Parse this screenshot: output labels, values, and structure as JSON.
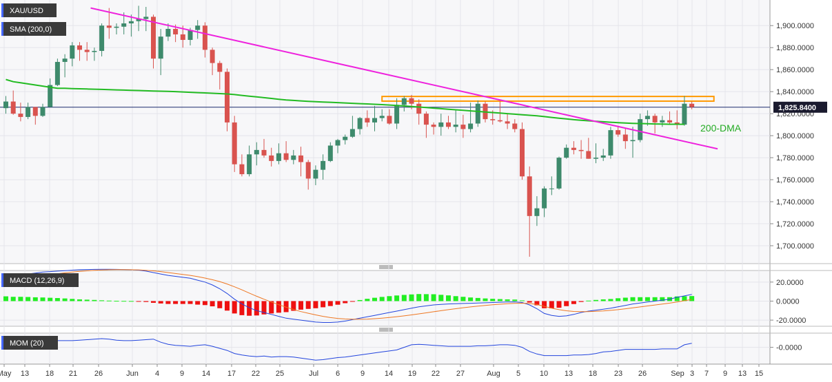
{
  "colors": {
    "up": "#3e8a6c",
    "down": "#d9534f",
    "sma": "#22bb22",
    "trendline": "#ee22dd",
    "resistance": "#ff9900",
    "macd_line": "#2244dd",
    "signal_line": "#ee7722",
    "hist_pos": "#22ee22",
    "hist_neg": "#ee1111",
    "mom_line": "#2244dd",
    "price_tag": "#1a1a2e",
    "current_line": "#1a2a6c"
  },
  "chart_data": [
    {
      "type": "candlestick",
      "title": "XAU/USD",
      "indicator_label": "SMA (200,0)",
      "annotation": "200-DMA",
      "current_price": 1825.84,
      "current_price_label": "1,825.8400",
      "ylim": [
        1685,
        1922
      ],
      "y_ticks": [
        "1,700.0000",
        "1,720.0000",
        "1,740.0000",
        "1,760.0000",
        "1,780.0000",
        "1,800.0000",
        "1,820.0000",
        "1,840.0000",
        "1,860.0000",
        "1,880.0000",
        "1,900.0000"
      ],
      "x_ticks": [
        "May",
        "13",
        "18",
        "21",
        "26",
        "Jun",
        "4",
        "9",
        "14",
        "17",
        "22",
        "25",
        "Jul",
        "6",
        "9",
        "14",
        "19",
        "22",
        "27",
        "Aug",
        "5",
        "10",
        "13",
        "18",
        "23",
        "26",
        "Sep",
        "3",
        "7",
        "9",
        "13",
        "15"
      ],
      "candles": [
        [
          1825,
          1836,
          1820,
          1831
        ],
        [
          1831,
          1841,
          1819,
          1820
        ],
        [
          1820,
          1830,
          1813,
          1817
        ],
        [
          1817,
          1830,
          1815,
          1826
        ],
        [
          1826,
          1826,
          1810,
          1818
        ],
        [
          1818,
          1829,
          1817,
          1826
        ],
        [
          1826,
          1852,
          1826,
          1846
        ],
        [
          1846,
          1870,
          1845,
          1867
        ],
        [
          1867,
          1874,
          1853,
          1870
        ],
        [
          1870,
          1885,
          1863,
          1882
        ],
        [
          1882,
          1885,
          1868,
          1878
        ],
        [
          1878,
          1885,
          1868,
          1876
        ],
        [
          1876,
          1880,
          1868,
          1877
        ],
        [
          1877,
          1902,
          1872,
          1900
        ],
        [
          1900,
          1916,
          1888,
          1898
        ],
        [
          1898,
          1902,
          1892,
          1899
        ],
        [
          1899,
          1912,
          1892,
          1902
        ],
        [
          1902,
          1910,
          1890,
          1904
        ],
        [
          1904,
          1918,
          1895,
          1906
        ],
        [
          1906,
          1917,
          1895,
          1908
        ],
        [
          1908,
          1910,
          1861,
          1870
        ],
        [
          1870,
          1897,
          1855,
          1890
        ],
        [
          1890,
          1902,
          1886,
          1897
        ],
        [
          1897,
          1901,
          1885,
          1892
        ],
        [
          1892,
          1900,
          1880,
          1887
        ],
        [
          1887,
          1898,
          1882,
          1896
        ],
        [
          1896,
          1905,
          1888,
          1900
        ],
        [
          1900,
          1903,
          1871,
          1878
        ],
        [
          1878,
          1880,
          1855,
          1866
        ],
        [
          1866,
          1868,
          1842,
          1858
        ],
        [
          1858,
          1861,
          1804,
          1812
        ],
        [
          1812,
          1818,
          1767,
          1774
        ],
        [
          1774,
          1783,
          1763,
          1765
        ],
        [
          1765,
          1791,
          1763,
          1783
        ],
        [
          1783,
          1794,
          1773,
          1787
        ],
        [
          1787,
          1797,
          1780,
          1782
        ],
        [
          1782,
          1789,
          1772,
          1777
        ],
        [
          1777,
          1793,
          1774,
          1784
        ],
        [
          1784,
          1795,
          1776,
          1778
        ],
        [
          1778,
          1787,
          1774,
          1782
        ],
        [
          1782,
          1790,
          1763,
          1776
        ],
        [
          1776,
          1778,
          1751,
          1761
        ],
        [
          1761,
          1773,
          1755,
          1769
        ],
        [
          1769,
          1783,
          1760,
          1777
        ],
        [
          1777,
          1794,
          1776,
          1791
        ],
        [
          1791,
          1797,
          1784,
          1796
        ],
        [
          1796,
          1801,
          1792,
          1799
        ],
        [
          1799,
          1818,
          1798,
          1806
        ],
        [
          1806,
          1817,
          1801,
          1816
        ],
        [
          1816,
          1823,
          1808,
          1812
        ],
        [
          1812,
          1827,
          1804,
          1816
        ],
        [
          1816,
          1824,
          1813,
          1818
        ],
        [
          1818,
          1824,
          1810,
          1811
        ],
        [
          1811,
          1834,
          1806,
          1828
        ],
        [
          1828,
          1836,
          1822,
          1834
        ],
        [
          1834,
          1837,
          1824,
          1829
        ],
        [
          1829,
          1833,
          1810,
          1820
        ],
        [
          1820,
          1822,
          1798,
          1810
        ],
        [
          1810,
          1812,
          1801,
          1808
        ],
        [
          1808,
          1820,
          1800,
          1812
        ],
        [
          1812,
          1818,
          1806,
          1808
        ],
        [
          1808,
          1823,
          1803,
          1810
        ],
        [
          1810,
          1819,
          1798,
          1806
        ],
        [
          1806,
          1830,
          1803,
          1811
        ],
        [
          1811,
          1832,
          1808,
          1829
        ],
        [
          1829,
          1831,
          1812,
          1815
        ],
        [
          1815,
          1823,
          1810,
          1814
        ],
        [
          1814,
          1832,
          1812,
          1813
        ],
        [
          1813,
          1820,
          1806,
          1811
        ],
        [
          1811,
          1815,
          1803,
          1806
        ],
        [
          1806,
          1812,
          1760,
          1763
        ],
        [
          1763,
          1772,
          1690,
          1727
        ],
        [
          1727,
          1745,
          1718,
          1734
        ],
        [
          1734,
          1754,
          1726,
          1752
        ],
        [
          1752,
          1763,
          1746,
          1752
        ],
        [
          1752,
          1781,
          1751,
          1780
        ],
        [
          1780,
          1792,
          1779,
          1789
        ],
        [
          1789,
          1795,
          1783,
          1787
        ],
        [
          1787,
          1796,
          1779,
          1786
        ],
        [
          1786,
          1798,
          1779,
          1779
        ],
        [
          1779,
          1793,
          1775,
          1780
        ],
        [
          1780,
          1788,
          1777,
          1782
        ],
        [
          1782,
          1808,
          1779,
          1805
        ],
        [
          1805,
          1809,
          1799,
          1801
        ],
        [
          1801,
          1807,
          1788,
          1795
        ],
        [
          1795,
          1808,
          1780,
          1796
        ],
        [
          1796,
          1820,
          1794,
          1815
        ],
        [
          1815,
          1823,
          1809,
          1818
        ],
        [
          1818,
          1820,
          1802,
          1812
        ],
        [
          1812,
          1818,
          1808,
          1814
        ],
        [
          1814,
          1822,
          1810,
          1812
        ],
        [
          1812,
          1823,
          1806,
          1810
        ],
        [
          1810,
          1836,
          1809,
          1829
        ],
        [
          1829,
          1831,
          1824,
          1826
        ]
      ],
      "sma_200": [
        1851,
        1849,
        1848,
        1847,
        1846,
        1845,
        1844,
        1843,
        1843,
        1842.8,
        1842.6,
        1842.4,
        1842.2,
        1842,
        1841.8,
        1841.6,
        1841.4,
        1841.2,
        1841,
        1840.8,
        1840.6,
        1840.4,
        1840.2,
        1840,
        1839.7,
        1839.4,
        1839.1,
        1838.8,
        1838.5,
        1838.2,
        1837.9,
        1837.3,
        1836.6,
        1835.9,
        1835.2,
        1834.5,
        1833.8,
        1833.1,
        1832.4,
        1832,
        1831.6,
        1831.2,
        1830.9,
        1830.6,
        1830.3,
        1830,
        1829.7,
        1829.4,
        1829.1,
        1828.8,
        1828.5,
        1828.2,
        1827.8,
        1827.4,
        1827,
        1826.5,
        1826,
        1825.5,
        1825,
        1824.5,
        1824,
        1823.5,
        1823,
        1822.5,
        1822,
        1821.5,
        1821,
        1820.5,
        1820,
        1819.5,
        1819,
        1818.5,
        1818,
        1817.3,
        1816.6,
        1815.9,
        1815.2,
        1814.5,
        1814,
        1813.5,
        1813,
        1812.6,
        1812.2,
        1811.8,
        1811.5,
        1811.2,
        1811,
        1810.8,
        1810.6,
        1810.5,
        1810.4,
        1810.4,
        1810.3
      ],
      "trendline": {
        "from": [
          11.5,
          1916
        ],
        "to": [
          96.5,
          1788
        ]
      },
      "resistance": {
        "from": [
          51,
          1832
        ],
        "to": [
          96,
          1835
        ]
      }
    },
    {
      "type": "macd",
      "title": "MACD (12,26,9)",
      "ylim": [
        -25,
        30
      ],
      "y_ticks": [
        "20.0000",
        "0.0000",
        "-20.0000"
      ],
      "macd": [
        24,
        26,
        27.5,
        28.5,
        29.5,
        30.5,
        31,
        31.5,
        32,
        32.5,
        33,
        33.2,
        33.3,
        33.4,
        33.4,
        33.3,
        33.2,
        33,
        32.5,
        31.5,
        30,
        28.5,
        27,
        26,
        25,
        24,
        22,
        20,
        17,
        13,
        8,
        2,
        -3,
        -7,
        -10,
        -12,
        -14,
        -16,
        -18,
        -19,
        -20,
        -21,
        -22,
        -22.5,
        -22.5,
        -22,
        -21,
        -19.5,
        -18,
        -16.5,
        -15,
        -13.5,
        -12,
        -10.5,
        -9,
        -7.5,
        -6,
        -5,
        -4,
        -3.5,
        -3,
        -2.8,
        -2.5,
        -2.3,
        -2,
        -1.8,
        -1.5,
        -1.2,
        -1,
        -0.8,
        -1.5,
        -4,
        -8,
        -13,
        -15,
        -16,
        -15.5,
        -14,
        -12,
        -10.5,
        -9.5,
        -8.5,
        -7.5,
        -6,
        -4.5,
        -3,
        -2,
        -1,
        0,
        1,
        2,
        4,
        5.5,
        7
      ],
      "signal": [
        20,
        21.5,
        23,
        24.3,
        25.5,
        26.7,
        27.8,
        28.8,
        29.7,
        30.5,
        31.2,
        31.8,
        32.3,
        32.7,
        33,
        33.1,
        33.1,
        33,
        32.8,
        32.4,
        31.8,
        31,
        30,
        29,
        28,
        27,
        25.7,
        24.2,
        22.5,
        20.5,
        18,
        15,
        11.8,
        8.4,
        5.1,
        2,
        -1,
        -3.8,
        -6.4,
        -8.8,
        -11,
        -12.8,
        -14.5,
        -16,
        -17.3,
        -18.2,
        -18.8,
        -19.1,
        -19.1,
        -18.9,
        -18.5,
        -17.9,
        -17.2,
        -16.4,
        -15.5,
        -14.5,
        -13.4,
        -12.3,
        -11.2,
        -10.1,
        -9,
        -8,
        -7,
        -6.1,
        -5.3,
        -4.6,
        -3.9,
        -3.3,
        -2.8,
        -2.4,
        -2.2,
        -2.5,
        -3.6,
        -5.5,
        -7.4,
        -9,
        -10.2,
        -10.9,
        -11.1,
        -11,
        -10.7,
        -10.3,
        -9.7,
        -9,
        -8.1,
        -7.1,
        -6.1,
        -5.1,
        -4.1,
        -3.1,
        -2.1,
        -0.9,
        0.4,
        1.7
      ],
      "histogram": [
        5,
        4.5,
        4.5,
        4.3,
        4,
        3.8,
        3.5,
        3.2,
        2.8,
        2.3,
        1.8,
        1.5,
        1.2,
        0.8,
        0.5,
        0.3,
        0.2,
        0.1,
        -0.3,
        -0.9,
        -1.8,
        -2.5,
        -3,
        -3,
        -3,
        -3,
        -3.7,
        -4.2,
        -5.5,
        -7.5,
        -10,
        -13,
        -14.8,
        -15.4,
        -15.1,
        -14,
        -13,
        -12.2,
        -11.6,
        -10.2,
        -9,
        -8.2,
        -7.5,
        -6.5,
        -5.2,
        -3.8,
        -2.2,
        -0.4,
        1.1,
        2.4,
        3.5,
        4.4,
        5.2,
        5.9,
        6.5,
        7,
        7.4,
        7.3,
        7.2,
        6.6,
        6,
        5.2,
        4.5,
        3.8,
        3.3,
        2.8,
        2.4,
        2.1,
        1.8,
        1.6,
        0.7,
        -1.5,
        -4.4,
        -7.5,
        -7.6,
        -7,
        -5.3,
        -3.1,
        -0.9,
        0.5,
        1.2,
        1.8,
        2.2,
        3,
        3.6,
        4.1,
        4.1,
        4.1,
        4.1,
        4.1,
        4.1,
        4.9,
        5.1,
        5.3
      ]
    },
    {
      "type": "line",
      "title": "MOM (20)",
      "ylim": [
        -30,
        25
      ],
      "y_ticks": [
        "-0.0000"
      ],
      "values": [
        10,
        11,
        12,
        13,
        14,
        15,
        14,
        13,
        13,
        13,
        14,
        15,
        16,
        17,
        16,
        14,
        13,
        13,
        14,
        15,
        16,
        10,
        6,
        4,
        3,
        2,
        4,
        5,
        2,
        -2,
        -6,
        -12,
        -15,
        -17,
        -18,
        -17,
        -19,
        -18,
        -18,
        -19,
        -21,
        -23,
        -25,
        -24,
        -22,
        -20,
        -19,
        -17,
        -15,
        -13,
        -11,
        -9,
        -7,
        -5,
        0,
        5,
        6,
        5,
        4,
        3,
        2,
        2,
        2,
        2,
        3,
        3,
        4,
        5,
        5,
        4,
        0,
        -8,
        -13,
        -16,
        -16,
        -16,
        -16,
        -15,
        -15,
        -14,
        -12,
        -9,
        -8,
        -6,
        -4,
        -4,
        -4,
        -4,
        -4,
        -3,
        -3,
        -3,
        5,
        8
      ]
    }
  ]
}
